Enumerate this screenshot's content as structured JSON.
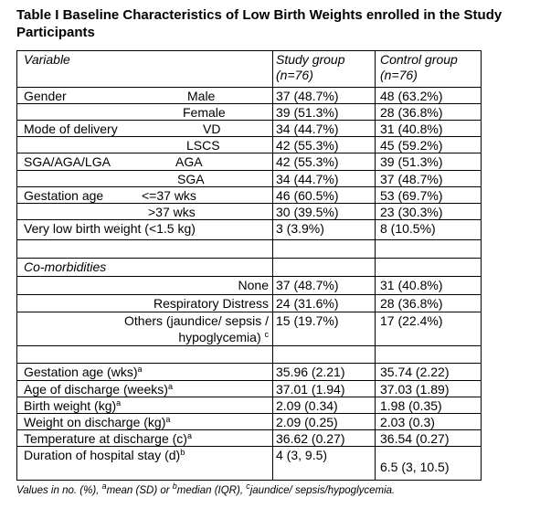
{
  "title": "Table I Baseline Characteristics of Low Birth Weights enrolled in the Study Participants",
  "table": {
    "header": {
      "variable": "Variable",
      "study": [
        "Study group",
        "(n=76)"
      ],
      "control": [
        "Control group",
        "(n=76)"
      ]
    },
    "sections": [
      {
        "rows": [
          {
            "group": "Gender",
            "sub": "Male",
            "study": "37 (48.7%)",
            "control": "48 (63.2%)"
          },
          {
            "sub": "Female",
            "study": "39 (51.3%)",
            "control": "28 (36.8%)"
          },
          {
            "group": "Mode of delivery",
            "sub": "VD",
            "study": "34 (44.7%)",
            "control": "31 (40.8%)"
          },
          {
            "sub": "LSCS",
            "study": "42 (55.3%)",
            "control": "45 (59.2%)"
          },
          {
            "group": "SGA/AGA/LGA",
            "sub": "AGA",
            "study": "42 (55.3%)",
            "control": "39 (51.3%)"
          },
          {
            "sub": "SGA",
            "study": "34 (44.7%)",
            "control": "37 (48.7%)"
          },
          {
            "group": "Gestation age",
            "sub": "<=37 wks",
            "study": "46 (60.5%)",
            "control": "53 (69.7%)"
          },
          {
            "sub": ">37 wks",
            "study": "30 (39.5%)",
            "control": "23 (30.3%)"
          },
          {
            "label": "Very low birth weight (<1.5 kg)",
            "study": "3 (3.9%)",
            "control": "8 (10.5%)"
          }
        ]
      },
      {
        "heading": "Co-morbidities",
        "rows": [
          {
            "label": [
              "None"
            ],
            "study": "37 (48.7%)",
            "control": "31 (40.8%)"
          },
          {
            "label": [
              "Respiratory Distress"
            ],
            "study": "24 (31.6%)",
            "control": "28 (36.8%)"
          },
          {
            "label": [
              "Others (jaundice/ sepsis /",
              "hypoglycemia)"
            ],
            "sup": "c",
            "study": "15 (19.7%)",
            "control": "17 (22.4%)"
          }
        ]
      },
      {
        "rows": [
          {
            "label": "Gestation age (wks)",
            "sup": "a",
            "study": "35.96 (2.21)",
            "control": "35.74 (2.22)"
          },
          {
            "label": "Age of discharge (weeks)",
            "sup": "a",
            "study": "37.01 (1.94)",
            "control": "37.03 (1.89)"
          },
          {
            "label": "Birth weight (kg)",
            "sup": "a",
            "study": "2.09 (0.34)",
            "control": "1.98 (0.35)"
          },
          {
            "label": "Weight on discharge (kg)",
            "sup": "a",
            "study": "2.09 (0.25)",
            "control": "2.03 (0.3)"
          },
          {
            "label": "Temperature at discharge (c)",
            "sup": "a",
            "study": "36.62 (0.27)",
            "control": "36.54 (0.27)"
          },
          {
            "label": "Duration of hospital stay (d)",
            "sup": "b",
            "study": "4 (3, 9.5)",
            "control": "6.5 (3, 10.5)"
          }
        ]
      }
    ]
  },
  "footnote": {
    "parts": [
      "Values in no. (%), ",
      "mean (SD) or ",
      "median (IQR), ",
      "jaundice/ sepsis/hypoglycemia."
    ],
    "sups": [
      "a",
      "b",
      "c"
    ]
  }
}
